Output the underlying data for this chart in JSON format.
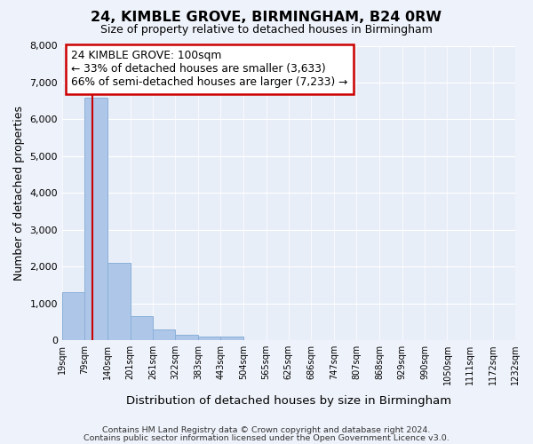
{
  "title": "24, KIMBLE GROVE, BIRMINGHAM, B24 0RW",
  "subtitle": "Size of property relative to detached houses in Birmingham",
  "xlabel": "Distribution of detached houses by size in Birmingham",
  "ylabel": "Number of detached properties",
  "bin_edges": [
    19,
    79,
    140,
    201,
    261,
    322,
    383,
    443,
    504,
    565,
    625,
    686,
    747,
    807,
    868,
    929,
    990,
    1050,
    1111,
    1172,
    1232
  ],
  "bin_labels": [
    "19sqm",
    "79sqm",
    "140sqm",
    "201sqm",
    "261sqm",
    "322sqm",
    "383sqm",
    "443sqm",
    "504sqm",
    "565sqm",
    "625sqm",
    "686sqm",
    "747sqm",
    "807sqm",
    "868sqm",
    "929sqm",
    "990sqm",
    "1050sqm",
    "1111sqm",
    "1172sqm",
    "1232sqm"
  ],
  "bar_heights": [
    1300,
    6600,
    2100,
    650,
    300,
    150,
    100,
    100,
    0,
    0,
    0,
    0,
    0,
    0,
    0,
    0,
    0,
    0,
    0,
    0
  ],
  "bar_color": "#aec6e8",
  "bar_edge_color": "#8ab0d8",
  "property_size": 100,
  "red_line_color": "#cc0000",
  "annotation_line1": "24 KIMBLE GROVE: 100sqm",
  "annotation_line2": "← 33% of detached houses are smaller (3,633)",
  "annotation_line3": "66% of semi-detached houses are larger (7,233) →",
  "annotation_box_edge": "#cc0000",
  "annotation_box_face": "#ffffff",
  "ylim": [
    0,
    8000
  ],
  "yticks": [
    0,
    1000,
    2000,
    3000,
    4000,
    5000,
    6000,
    7000,
    8000
  ],
  "bg_color": "#eef2fa",
  "plot_bg": "#e8eef8",
  "grid_color": "#ffffff",
  "footer1": "Contains HM Land Registry data © Crown copyright and database right 2024.",
  "footer2": "Contains public sector information licensed under the Open Government Licence v3.0."
}
